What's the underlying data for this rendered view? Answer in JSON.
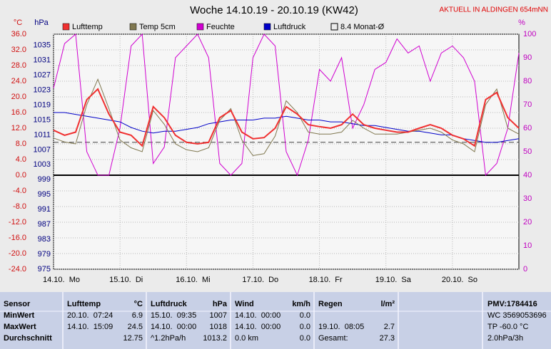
{
  "chart_data": {
    "type": "line",
    "title": "Woche 14.10.19 - 20.10.19 (KW42)",
    "station": "AKTUELL IN ALDINGEN 654mNN",
    "ylabel": "°C",
    "y2label": "hPa",
    "y3label": "%",
    "xlim": [
      0,
      168
    ],
    "xticks": [
      {
        "value": 0,
        "label": "14.10.  Mo"
      },
      {
        "value": 24,
        "label": "15.10.  Di"
      },
      {
        "value": 48,
        "label": "16.10.  Mi"
      },
      {
        "value": 72,
        "label": "17.10.  Do"
      },
      {
        "value": 96,
        "label": "18.10.  Fr"
      },
      {
        "value": 120,
        "label": "19.10.  Sa"
      },
      {
        "value": 144,
        "label": "20.10.  So"
      }
    ],
    "ylim": [
      -24,
      36
    ],
    "yticks": [
      {
        "value": -24,
        "label": "-24.0"
      },
      {
        "value": -20,
        "label": "-20.0"
      },
      {
        "value": -16,
        "label": "-16.0"
      },
      {
        "value": -12,
        "label": "-12.0"
      },
      {
        "value": -8,
        "label": "-8.0"
      },
      {
        "value": -4,
        "label": "-4.0"
      },
      {
        "value": 0,
        "label": "0.0"
      },
      {
        "value": 4,
        "label": "4.0"
      },
      {
        "value": 8,
        "label": "8.0"
      },
      {
        "value": 12,
        "label": "12.0"
      },
      {
        "value": 16,
        "label": "16.0"
      },
      {
        "value": 20,
        "label": "20.0"
      },
      {
        "value": 24,
        "label": "24.0"
      },
      {
        "value": 28,
        "label": "28.0"
      },
      {
        "value": 32,
        "label": "32.0"
      },
      {
        "value": 36,
        "label": "36.0"
      }
    ],
    "y2lim": [
      975,
      1038
    ],
    "y2ticks": [
      975,
      979,
      983,
      987,
      991,
      995,
      999,
      1003,
      1007,
      1011,
      1015,
      1019,
      1023,
      1027,
      1031,
      1035
    ],
    "y3lim": [
      0,
      100
    ],
    "y3ticks": [
      0,
      10,
      20,
      30,
      40,
      50,
      60,
      70,
      80,
      90,
      100
    ],
    "grid": true,
    "x": [
      0,
      4,
      8,
      12,
      16,
      20,
      24,
      28,
      32,
      36,
      40,
      44,
      48,
      52,
      56,
      60,
      64,
      68,
      72,
      76,
      80,
      84,
      88,
      92,
      96,
      100,
      104,
      108,
      112,
      116,
      120,
      124,
      128,
      132,
      136,
      140,
      144,
      148,
      152,
      156,
      160,
      164,
      168
    ],
    "series": [
      {
        "name": "Feuchte",
        "color": "#d000d0",
        "axis": "y3",
        "values": [
          77,
          96,
          100,
          50,
          40,
          40,
          60,
          95,
          100,
          45,
          52,
          90,
          95,
          100,
          90,
          45,
          40,
          45,
          90,
          100,
          95,
          50,
          40,
          55,
          85,
          80,
          90,
          60,
          70,
          85,
          88,
          98,
          92,
          95,
          80,
          92,
          95,
          90,
          80,
          40,
          45,
          60,
          92
        ]
      },
      {
        "name": "Luftdruck",
        "color": "#0000c8",
        "axis": "y2",
        "values": [
          1017,
          1017,
          1016.5,
          1016,
          1015.5,
          1015,
          1014.5,
          1013,
          1012,
          1011.5,
          1012,
          1012,
          1012.5,
          1013,
          1014,
          1014.5,
          1015,
          1015,
          1015,
          1015.5,
          1015.5,
          1016,
          1015.5,
          1015,
          1015,
          1014.5,
          1014.5,
          1014,
          1013.5,
          1013.5,
          1013,
          1012.5,
          1012,
          1012,
          1011.5,
          1011,
          1011,
          1010,
          1009.5,
          1009,
          1009,
          1009.5,
          1010
        ]
      },
      {
        "name": "Temp 5cm",
        "color": "#807850",
        "values": [
          9.5,
          8.5,
          8,
          18,
          24.5,
          17,
          9,
          7,
          6,
          16.5,
          13,
          8,
          6.5,
          6,
          7,
          14,
          17,
          9,
          5,
          5.5,
          10,
          19,
          16,
          11,
          10.5,
          10.5,
          11,
          14,
          12,
          10.5,
          10.5,
          10.5,
          11,
          11.5,
          12,
          11,
          9,
          8,
          6,
          18,
          22,
          12,
          10.5
        ]
      },
      {
        "name": "Lufttemp",
        "color": "#f03030",
        "values": [
          11.5,
          10.2,
          11,
          19.3,
          22,
          15.6,
          11,
          10.2,
          7.5,
          17.5,
          14.7,
          10.2,
          8.4,
          8,
          8.4,
          14.7,
          16.5,
          11,
          9.3,
          9.6,
          12,
          17.5,
          15.6,
          12.9,
          12.4,
          12,
          12.9,
          15.6,
          12.9,
          12,
          11.5,
          11,
          11,
          12,
          12.9,
          12,
          10.2,
          9.3,
          7.5,
          19.3,
          21.1,
          14.7,
          12
        ]
      }
    ],
    "legend_order": [
      3,
      2,
      0,
      1
    ],
    "reference_line": {
      "label": "8.4 Monat-Ø",
      "value": 8.4
    }
  },
  "table": {
    "header": [
      "Sensor",
      "Lufttemp",
      "°C",
      "Luftdruck",
      "hPa",
      "Wind",
      "km/h",
      "Regen",
      "l/m²",
      "PMV:1784416"
    ],
    "rows": [
      {
        "c0": "MinWert",
        "c1": "20.10.  07:24",
        "c2": "6.9",
        "c3": "15.10.  09:35",
        "c4": "1007",
        "c5": "14.10.  00:00",
        "c6": "0.0",
        "c9": "WC 3569053696"
      },
      {
        "c0": "MaxWert",
        "c1": "14.10.  15:09",
        "c2": "24.5",
        "c3": "14.10.  00:00",
        "c4": "1018",
        "c5": "14.10.  00:00",
        "c6": "0.0",
        "c7": "19.10.  08:05",
        "c8": "2.7",
        "c9": "TP -60.0 °C"
      },
      {
        "c0": "Durchschnitt",
        "c2": "12.75",
        "c3": "^1.2hPa/h",
        "c4": "1013.2",
        "c5": "0.0 km",
        "c6": "0.0",
        "c7": "Gesamt:",
        "c8": "27.3",
        "c9": "2.0hPa/3h"
      }
    ]
  }
}
